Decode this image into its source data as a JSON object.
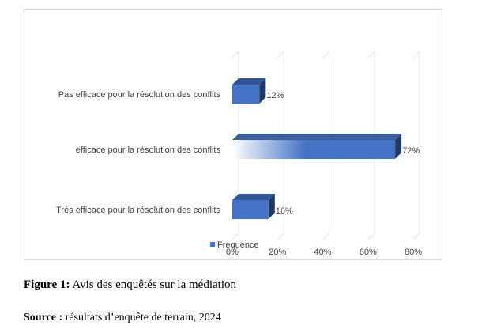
{
  "chart_data": {
    "type": "bar",
    "orientation": "horizontal",
    "style": "3d",
    "categories": [
      "Très efficace pour la résolution des conflits",
      "efficace pour la résolution des conflits",
      "Pas efficace pour la résolution des conflits"
    ],
    "series": [
      {
        "name": "Frequence",
        "values": [
          16,
          72,
          12
        ],
        "data_labels": [
          "16%",
          "72%",
          "12%"
        ]
      }
    ],
    "xlim": [
      0,
      80
    ],
    "x_ticks": [
      "0%",
      "20%",
      "40%",
      "60%",
      "80%"
    ],
    "grid": "vertical",
    "legend": "bottom",
    "bar_color": "#4472c4",
    "bar_top_color": "#2f5597",
    "bar_side_color": "#203864"
  },
  "caption": {
    "label": "Figure 1:",
    "text": " Avis des enquêtés sur la médiation"
  },
  "source": {
    "label": "Source :",
    "text": " résultats d’enquête de terrain, 2024"
  }
}
